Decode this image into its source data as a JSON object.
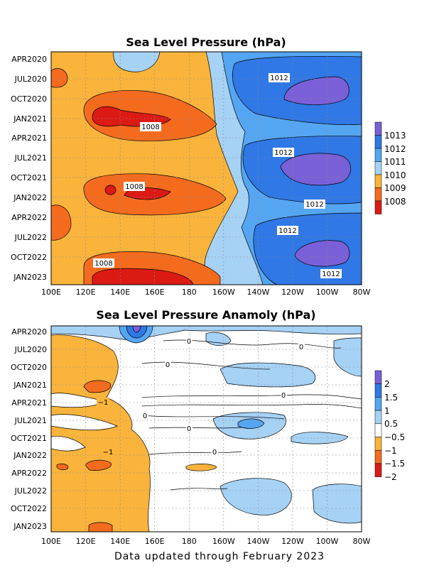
{
  "footer": "Data updated through February 2023",
  "chart_data": [
    {
      "type": "heatmap",
      "title": "Sea Level Pressure (hPa)",
      "x_ticks": [
        "100E",
        "120E",
        "140E",
        "160E",
        "180",
        "160W",
        "140W",
        "120W",
        "100W",
        "80W"
      ],
      "y_ticks": [
        "APR2020",
        "JUL2020",
        "OCT2020",
        "JAN2021",
        "APR2021",
        "JUL2021",
        "OCT2021",
        "JAN2022",
        "APR2022",
        "JUL2022",
        "OCT2022",
        "JAN2023"
      ],
      "colorbar": {
        "labels": [
          "1013",
          "1012",
          "1011",
          "1010",
          "1009",
          "1008"
        ],
        "colors": [
          "#7a60d8",
          "#2f78e6",
          "#55a6f2",
          "#a6d2f6",
          "#fab43c",
          "#f56b1e",
          "#dc1a14"
        ]
      },
      "contour_labels": [
        "1012",
        "1008",
        "1012",
        "1008",
        "1012",
        "1012",
        "1008",
        "1012"
      ],
      "colors": {
        "c1007": "#dc1a14",
        "c1008": "#f56b1e",
        "c1009": "#fab43c",
        "c1010": "#a6d2f6",
        "c1011": "#55a6f2",
        "c1012": "#2f78e6",
        "c1013": "#7a60d8"
      },
      "grid": true
    },
    {
      "type": "heatmap",
      "title": "Sea Level Pressure Anamoly (hPa)",
      "x_ticks": [
        "100E",
        "120E",
        "140E",
        "160E",
        "180",
        "160W",
        "140W",
        "120W",
        "100W",
        "80W"
      ],
      "y_ticks": [
        "APR2020",
        "JUL2020",
        "OCT2020",
        "JAN2021",
        "APR2021",
        "JUL2021",
        "OCT2021",
        "JAN2022",
        "APR2022",
        "JUL2022",
        "OCT2022",
        "JAN2023"
      ],
      "colorbar": {
        "labels": [
          "2",
          "1.5",
          "1",
          "0.5",
          "−0.5",
          "−1",
          "−1.5",
          "−2"
        ],
        "colors": [
          "#7a60d8",
          "#2f78e6",
          "#55a6f2",
          "#a6d2f6",
          "#ffffff",
          "#fab43c",
          "#f56b1e",
          "#dc1a14"
        ]
      },
      "contour_labels": [
        "−1",
        "0",
        "0",
        "0",
        "0",
        "0",
        "0",
        "−1",
        "0"
      ],
      "colors": {
        "neg1": "#fab43c",
        "neg2": "#f56b1e",
        "neg3": "#dc1a14",
        "pos1": "#a6d2f6",
        "pos2": "#55a6f2",
        "pos3": "#2f78e6",
        "pos4": "#7a60d8"
      },
      "grid": true
    }
  ]
}
